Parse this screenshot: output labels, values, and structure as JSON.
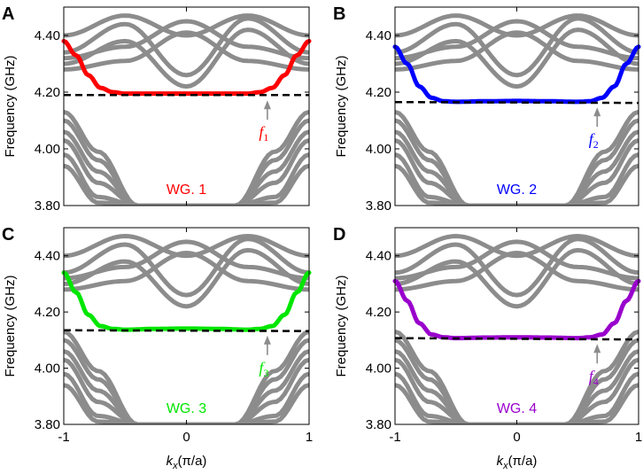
{
  "figure": {
    "x_axis_label": "k",
    "x_axis_label_sub": "x",
    "x_axis_label_tail": "(π/a)",
    "y_axis_label": "Frequency (GHz)",
    "band_color": "#8c8c8c",
    "dash_color": "#000000"
  },
  "chart_data": [
    {
      "type": "line",
      "panel": "A",
      "title": "WG. 1",
      "color": "#ff0000",
      "xlabel": "kx(π/a)",
      "ylabel": "Frequency (GHz)",
      "xlim": [
        -1,
        1
      ],
      "ylim": [
        3.8,
        4.5
      ],
      "xticks": [
        "-1",
        "0",
        "1"
      ],
      "yticks": [
        "3.80",
        "4.00",
        "4.20",
        "4.40"
      ],
      "edge_mode": {
        "name": "WG. 1",
        "x": [
          -1,
          -0.9,
          -0.8,
          -0.7,
          -0.6,
          -0.5,
          -0.25,
          0,
          0.25,
          0.5,
          0.6,
          0.7,
          0.8,
          0.9,
          1
        ],
        "y": [
          4.38,
          4.33,
          4.26,
          4.215,
          4.2,
          4.195,
          4.195,
          4.195,
          4.195,
          4.195,
          4.2,
          4.215,
          4.26,
          4.33,
          4.38
        ]
      },
      "marker": {
        "symbol": "f",
        "sub": "1",
        "frequency": 4.19,
        "k": 0.66
      },
      "dashed_line": {
        "y_left": 4.19,
        "y_right": 4.19
      }
    },
    {
      "type": "line",
      "panel": "B",
      "title": "WG. 2",
      "color": "#0000ff",
      "xlabel": "kx(π/a)",
      "ylabel": "Frequency (GHz)",
      "xlim": [
        -1,
        1
      ],
      "ylim": [
        3.8,
        4.5
      ],
      "xticks": [
        "-1",
        "0",
        "1"
      ],
      "yticks": [
        "3.80",
        "4.00",
        "4.20",
        "4.40"
      ],
      "edge_mode": {
        "name": "WG. 2",
        "x": [
          -1,
          -0.9,
          -0.8,
          -0.7,
          -0.6,
          -0.5,
          -0.25,
          0,
          0.25,
          0.5,
          0.6,
          0.7,
          0.8,
          0.9,
          1
        ],
        "y": [
          4.36,
          4.3,
          4.22,
          4.18,
          4.168,
          4.166,
          4.168,
          4.169,
          4.168,
          4.166,
          4.168,
          4.18,
          4.22,
          4.3,
          4.36
        ]
      },
      "marker": {
        "symbol": "f",
        "sub": "2",
        "frequency": 4.165,
        "k": 0.66
      },
      "dashed_line": {
        "y_left": 4.165,
        "y_right": 4.162
      }
    },
    {
      "type": "line",
      "panel": "C",
      "title": "WG. 3",
      "color": "#00e600",
      "xlabel": "kx(π/a)",
      "ylabel": "Frequency (GHz)",
      "xlim": [
        -1,
        1
      ],
      "ylim": [
        3.8,
        4.5
      ],
      "xticks": [
        "-1",
        "0",
        "1"
      ],
      "yticks": [
        "3.80",
        "4.00",
        "4.20",
        "4.40"
      ],
      "edge_mode": {
        "name": "WG. 3",
        "x": [
          -1,
          -0.9,
          -0.8,
          -0.7,
          -0.6,
          -0.5,
          -0.25,
          0,
          0.25,
          0.5,
          0.6,
          0.7,
          0.8,
          0.9,
          1
        ],
        "y": [
          4.34,
          4.27,
          4.19,
          4.15,
          4.14,
          4.137,
          4.14,
          4.141,
          4.14,
          4.137,
          4.14,
          4.15,
          4.19,
          4.27,
          4.34
        ]
      },
      "marker": {
        "symbol": "f",
        "sub": "3",
        "frequency": 4.135,
        "k": 0.66
      },
      "dashed_line": {
        "y_left": 4.135,
        "y_right": 4.132
      }
    },
    {
      "type": "line",
      "panel": "D",
      "title": "WG. 4",
      "color": "#9900cc",
      "xlabel": "kx(π/a)",
      "ylabel": "Frequency (GHz)",
      "xlim": [
        -1,
        1
      ],
      "ylim": [
        3.8,
        4.5
      ],
      "xticks": [
        "-1",
        "0",
        "1"
      ],
      "yticks": [
        "3.80",
        "4.00",
        "4.20",
        "4.40"
      ],
      "edge_mode": {
        "name": "WG. 4",
        "x": [
          -1,
          -0.9,
          -0.8,
          -0.7,
          -0.6,
          -0.5,
          -0.25,
          0,
          0.25,
          0.5,
          0.6,
          0.7,
          0.8,
          0.9,
          1
        ],
        "y": [
          4.31,
          4.24,
          4.16,
          4.12,
          4.11,
          4.107,
          4.109,
          4.11,
          4.109,
          4.107,
          4.11,
          4.12,
          4.16,
          4.24,
          4.31
        ]
      },
      "marker": {
        "symbol": "f",
        "sub": "4",
        "frequency": 4.105,
        "k": 0.66
      },
      "dashed_line": {
        "y_left": 4.107,
        "y_right": 4.102
      }
    }
  ]
}
